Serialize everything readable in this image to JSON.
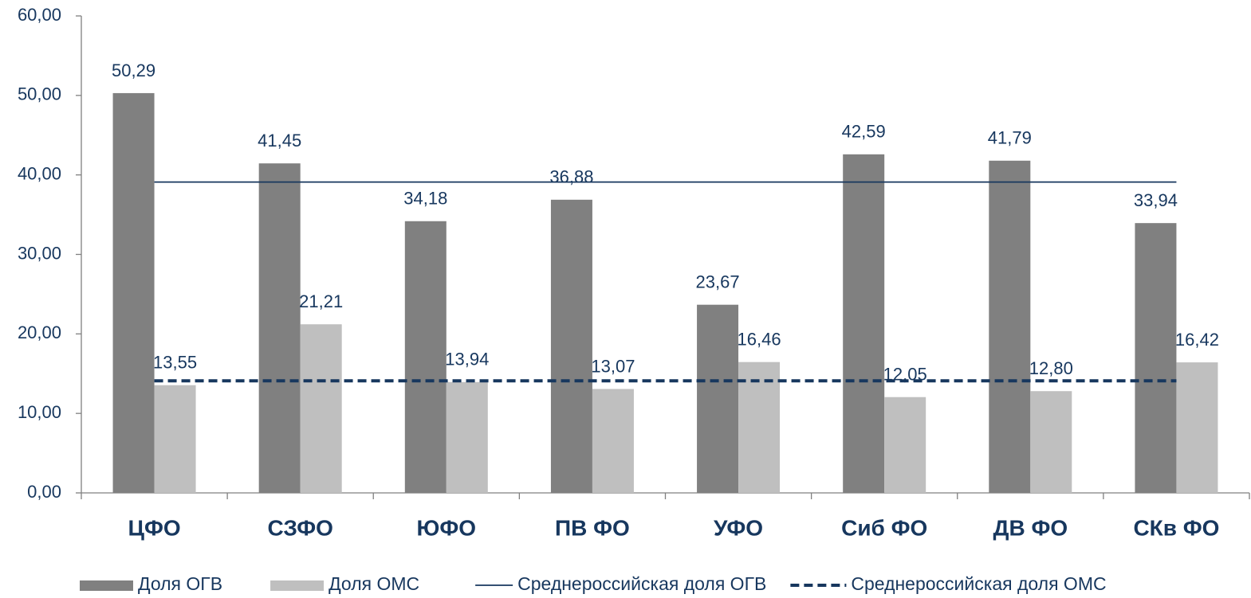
{
  "chart_data": {
    "type": "bar",
    "categories": [
      "ЦФО",
      "СЗФО",
      "ЮФО",
      "ПВ ФО",
      "УФО",
      "Сиб ФО",
      "ДВ ФО",
      "СКв ФО"
    ],
    "series": [
      {
        "name": "Доля ОГВ",
        "color": "#808080",
        "values": [
          50.29,
          41.45,
          34.18,
          36.88,
          23.67,
          42.59,
          41.79,
          33.94
        ],
        "value_labels": [
          "50,29",
          "41,45",
          "34,18",
          "36,88",
          "23,67",
          "42,59",
          "41,79",
          "33,94"
        ]
      },
      {
        "name": "Доля ОМС",
        "color": "#bfbfbf",
        "values": [
          13.55,
          21.21,
          13.94,
          13.07,
          16.46,
          12.05,
          12.8,
          16.42
        ],
        "value_labels": [
          "13,55",
          "21,21",
          "13,94",
          "13,07",
          "16,46",
          "12,05",
          "12,80",
          "16,42"
        ]
      }
    ],
    "reference_lines": [
      {
        "name": "Среднероссийская доля ОГВ",
        "color": "#17375e",
        "value": 39.1,
        "style": "solid"
      },
      {
        "name": "Среднероссийская доля ОМС",
        "color": "#17375e",
        "value": 14.1,
        "style": "dashed"
      }
    ],
    "ylim": [
      0,
      60
    ],
    "yticks": [
      {
        "value": 0,
        "label": "0,00"
      },
      {
        "value": 10,
        "label": "10,00"
      },
      {
        "value": 20,
        "label": "20,00"
      },
      {
        "value": 30,
        "label": "30,00"
      },
      {
        "value": 40,
        "label": "40,00"
      },
      {
        "value": 50,
        "label": "50,00"
      },
      {
        "value": 60,
        "label": "60,00"
      }
    ],
    "grid": false,
    "legend": "bottom"
  }
}
